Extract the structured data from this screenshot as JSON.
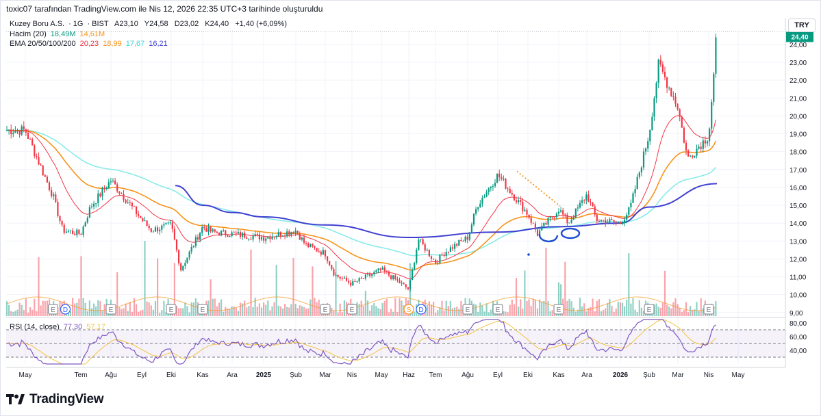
{
  "caption": "toxic07 tarafından TradingView.com ile Nis 12, 2026 22:35 UTC+3 tarihinde oluşturuldu",
  "brand": "TradingView",
  "symbol": {
    "name": "Kuzey Boru A.S.",
    "interval": "1G",
    "exchange": "BIST",
    "open_label": "A",
    "open": "23,10",
    "high_label": "Y",
    "high": "24,58",
    "low_label": "D",
    "low": "23,02",
    "close_label": "K",
    "close": "24,40",
    "change": "+1,40 (+6,09%)"
  },
  "volume_legend": {
    "label": "Hacim (20)",
    "value": "18,49M",
    "ma": "14,61M"
  },
  "ema_legend": {
    "label": "EMA 20/50/100/200",
    "v20": "20,23",
    "v50": "18,99",
    "v100": "17,67",
    "v200": "16,21"
  },
  "rsi_legend": {
    "label": "RSI (14, close)",
    "value": "77,30",
    "ma": "57,17"
  },
  "currency": "TRY",
  "last_price_tag": "24,40",
  "colors": {
    "up": "#089981",
    "down": "#f23645",
    "ema20": "#f23645",
    "ema50": "#f7931a",
    "ema100": "#89ebe8",
    "ema200": "#3f3fd1",
    "rsi": "#7e57c2",
    "rsi_ma": "#f5c342",
    "annotation": "#1e4fd1",
    "projection": "#f7931a"
  },
  "chart_data": {
    "type": "candlestick",
    "y_axis_ticks": [
      "24,00",
      "23,00",
      "22,00",
      "21,00",
      "20,00",
      "19,00",
      "18,00",
      "17,00",
      "16,00",
      "15,00",
      "14,00",
      "13,00",
      "12,00",
      "11,00",
      "10,00",
      "9,00"
    ],
    "rsi_axis_ticks": [
      "80,00",
      "60,00",
      "40,00"
    ],
    "x_axis_labels": [
      "May",
      "Tem",
      "Ağu",
      "Eyl",
      "Eki",
      "Kas",
      "Ara",
      "2025",
      "Şub",
      "Mar",
      "Nis",
      "May",
      "Haz",
      "Tem",
      "Ağu",
      "Eyl",
      "Eki",
      "Kas",
      "Ara",
      "2026",
      "Şub",
      "Mar",
      "Nis",
      "May"
    ],
    "events": [
      {
        "type": "E",
        "month": "Haz 2024"
      },
      {
        "type": "D",
        "month": "Haz 2024"
      },
      {
        "type": "E",
        "month": "Ağu 2024"
      },
      {
        "type": "E",
        "month": "Eki 2024"
      },
      {
        "type": "E",
        "month": "Kas 2024"
      },
      {
        "type": "E",
        "month": "Mar 2025"
      },
      {
        "type": "E",
        "month": "Nis 2025"
      },
      {
        "type": "S",
        "month": "Haz 2025"
      },
      {
        "type": "D",
        "month": "Haz 2025"
      },
      {
        "type": "E",
        "month": "Ağu 2025"
      },
      {
        "type": "E",
        "month": "Eyl 2025"
      },
      {
        "type": "E",
        "month": "Kas 2025"
      },
      {
        "type": "E",
        "month": "Şub 2026"
      },
      {
        "type": "E",
        "month": "Nis 2026"
      }
    ],
    "price_keypoints": [
      [
        "May 2024",
        19.2
      ],
      [
        "Haz 2024",
        15.5
      ],
      [
        "Haz 2024",
        13.6
      ],
      [
        "Tem 2024",
        13.4
      ],
      [
        "Tem 2024",
        14.9
      ],
      [
        "Ağu 2024",
        16.4
      ],
      [
        "Eyl 2024",
        14.2
      ],
      [
        "Eyl 2024",
        13.6
      ],
      [
        "Eki 2024",
        13.9
      ],
      [
        "Eki 2024",
        11.4
      ],
      [
        "Kas 2024",
        13.8
      ],
      [
        "Kas 2024",
        13.5
      ],
      [
        "Ara 2024",
        13.4
      ],
      [
        "2025",
        13.2
      ],
      [
        "Şub 2025",
        13.6
      ],
      [
        "Şub 2025",
        12.8
      ],
      [
        "Mar 2025",
        12.3
      ],
      [
        "Mar 2025",
        11.1
      ],
      [
        "Nis 2025",
        10.6
      ],
      [
        "May 2025",
        11.4
      ],
      [
        "Haz 2025",
        10.3
      ],
      [
        "Haz 2025",
        13.1
      ],
      [
        "Tem 2025",
        11.8
      ],
      [
        "Tem 2025",
        12.4
      ],
      [
        "Ağu 2025",
        13.2
      ],
      [
        "Ağu 2025",
        15.0
      ],
      [
        "Eyl 2025",
        16.7
      ],
      [
        "Eki 2025",
        14.5
      ],
      [
        "Eki 2025",
        13.4
      ],
      [
        "Kas 2025",
        14.8
      ],
      [
        "Kas 2025",
        14.0
      ],
      [
        "Ara 2025",
        15.6
      ],
      [
        "Ara 2025",
        14.2
      ],
      [
        "2026",
        14.0
      ],
      [
        "Ocak 2026",
        14.8
      ],
      [
        "Şub 2026",
        19.0
      ],
      [
        "Şub 2026",
        22.9
      ],
      [
        "Mar 2026",
        20.5
      ],
      [
        "Mar 2026",
        17.6
      ],
      [
        "Nis 2026",
        18.9
      ],
      [
        "Nis 2026",
        24.4
      ]
    ],
    "ema200_keypoints": [
      [
        "Eki 2024",
        16.1
      ],
      [
        "Kas 2024",
        15.0
      ],
      [
        "Ara 2024",
        14.6
      ],
      [
        "2025",
        14.35
      ],
      [
        "Mar 2025",
        13.9
      ],
      [
        "Haz 2025",
        13.2
      ],
      [
        "Eyl 2025",
        13.5
      ],
      [
        "Kas 2025",
        13.8
      ],
      [
        "2026",
        14.0
      ],
      [
        "Şub 2026",
        14.9
      ],
      [
        "Nis 2026",
        16.21
      ]
    ],
    "rsi_ylim": [
      20,
      85
    ],
    "rsi_bands": [
      70,
      50,
      30
    ],
    "ylim": [
      8.8,
      24.8
    ]
  }
}
